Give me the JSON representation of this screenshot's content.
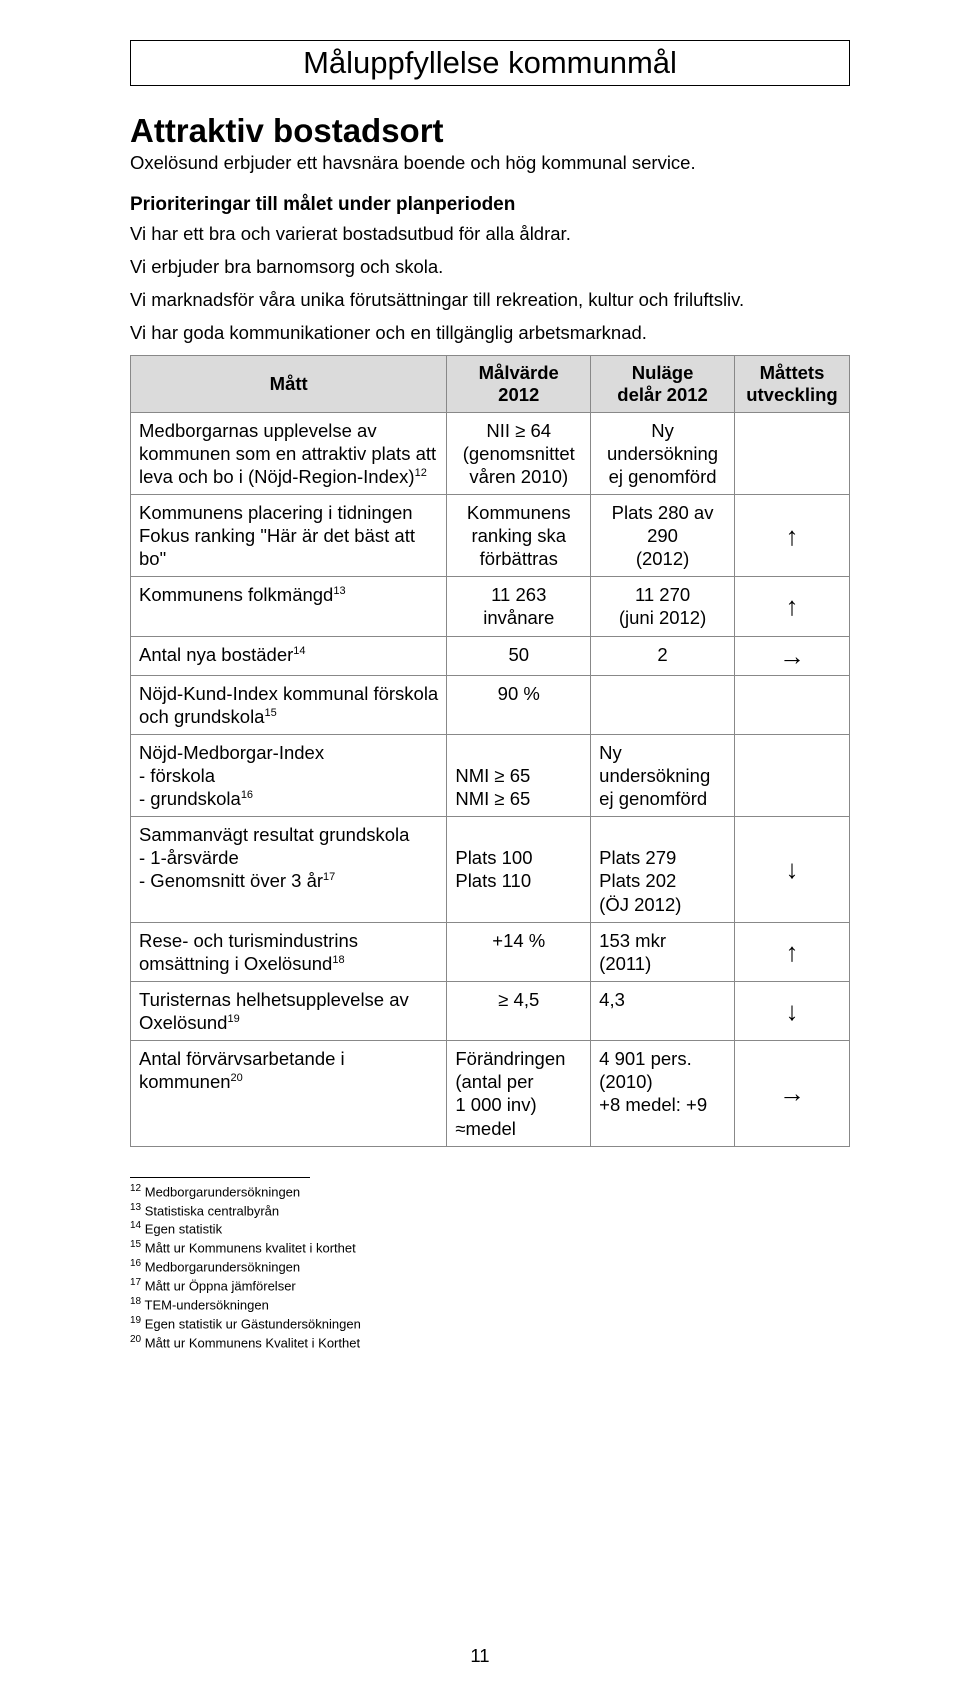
{
  "title": "Måluppfyllelse kommunmål",
  "section_heading": "Attraktiv bostadsort",
  "section_subline": "Oxelösund erbjuder ett havsnära boende och hög kommunal service.",
  "priorities_heading": "Prioriteringar till målet under planperioden",
  "priorities": [
    "Vi har ett bra och varierat bostadsutbud för alla åldrar.",
    "Vi erbjuder bra barnomsorg och skola.",
    "Vi marknadsför våra unika förutsättningar till rekreation, kultur och friluftsliv.",
    "Vi har goda kommunikationer och en tillgänglig arbetsmarknad."
  ],
  "table": {
    "headers": {
      "matt": "Mått",
      "malvarde": "Målvärde\n2012",
      "nulage": "Nuläge\ndelår 2012",
      "utveckling": "Måttets utveckling"
    },
    "rows": [
      {
        "matt": "Medborgarnas upplevelse av kommunen som en attraktiv plats att leva och bo i (Nöjd-Region-Index)",
        "sup": "12",
        "malvarde": "NII ≥ 64\n(genomsnittet våren 2010)",
        "nulage": "Ny\nundersökning ej genomförd",
        "trend": ""
      },
      {
        "matt": "Kommunens placering i tidningen Fokus ranking \"Här är det bäst att bo\"",
        "sup": "",
        "malvarde": "Kommunens ranking ska förbättras",
        "nulage": "Plats 280 av 290\n(2012)",
        "trend": "↑"
      },
      {
        "matt": "Kommunens folkmängd",
        "sup": "13",
        "malvarde": "11 263\ninvånare",
        "nulage": "11 270\n(juni 2012)",
        "trend": "↑"
      },
      {
        "matt": "Antal nya bostäder",
        "sup": "14",
        "malvarde": "50",
        "nulage": "2",
        "trend": "→"
      },
      {
        "matt": "Nöjd-Kund-Index kommunal förskola och grundskola",
        "sup": "15",
        "malvarde": "90 %",
        "nulage": "",
        "trend": ""
      },
      {
        "matt": "Nöjd-Medborgar-Index\n- förskola\n- grundskola",
        "sup": "16",
        "malvarde": "\nNMI ≥ 65\nNMI ≥ 65",
        "nulage": "Ny\nundersökning ej genomförd",
        "trend": ""
      },
      {
        "matt": "Sammanvägt resultat grundskola\n- 1-årsvärde\n- Genomsnitt över 3 år",
        "sup": "17",
        "malvarde": "\nPlats 100\nPlats 110",
        "nulage": "\nPlats 279\nPlats 202\n(ÖJ 2012)",
        "trend": "↓"
      },
      {
        "matt": "Rese- och turismindustrins omsättning i Oxelösund",
        "sup": "18",
        "malvarde": "+14 %",
        "nulage": "153 mkr\n(2011)",
        "trend": "↑"
      },
      {
        "matt": "Turisternas helhetsupplevelse av Oxelösund",
        "sup": "19",
        "malvarde": "≥ 4,5",
        "nulage": "4,3",
        "trend": "↓"
      },
      {
        "matt": "Antal förvärvsarbetande i kommunen",
        "sup": "20",
        "malvarde": "Förändringen (antal per\n1 000 inv)\n≈medel",
        "nulage": "4 901 pers.(2010)\n+8 medel: +9",
        "trend": "→"
      }
    ]
  },
  "footnotes": [
    {
      "n": "12",
      "text": "Medborgarundersökningen"
    },
    {
      "n": "13",
      "text": "Statistiska centralbyrån"
    },
    {
      "n": "14",
      "text": "Egen statistik"
    },
    {
      "n": "15",
      "text": "Mått ur Kommunens kvalitet i korthet"
    },
    {
      "n": "16",
      "text": "Medborgarundersökningen"
    },
    {
      "n": "17",
      "text": "Mått ur Öppna jämförelser"
    },
    {
      "n": "18",
      "text": "TEM-undersökningen"
    },
    {
      "n": "19",
      "text": "Egen statistik ur Gästundersökningen"
    },
    {
      "n": "20",
      "text": "Mått ur Kommunens Kvalitet i Korthet"
    }
  ],
  "page_number": "11"
}
